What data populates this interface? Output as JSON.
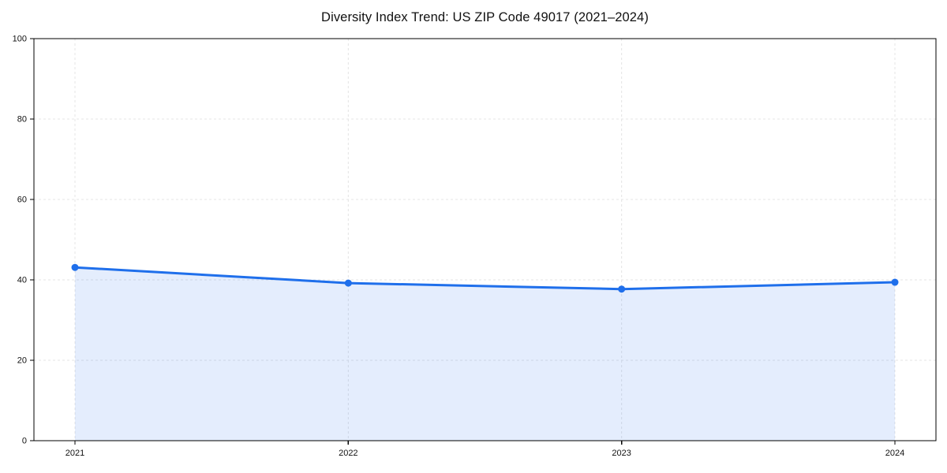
{
  "chart_data": {
    "type": "area",
    "title": "Diversity Index Trend: US ZIP Code 49017 (2021–2024)",
    "categories": [
      "2021",
      "2022",
      "2023",
      "2024"
    ],
    "series": [
      {
        "name": "Diversity Index",
        "values": [
          43.1,
          39.2,
          37.7,
          39.4
        ]
      }
    ],
    "xlabel": "",
    "ylabel": "",
    "ylim": [
      0,
      100
    ],
    "yticks": [
      0,
      20,
      40,
      60,
      80,
      100
    ],
    "grid": true,
    "grid_style": "dashed",
    "legend": "none",
    "colors": {
      "line": "#1f6feb",
      "marker": "#1f6feb",
      "fill": "rgba(31, 111, 235, 0.12)",
      "grid": "#e4e4e4",
      "axis": "#000000",
      "text": "#111111",
      "background": "#ffffff"
    }
  }
}
